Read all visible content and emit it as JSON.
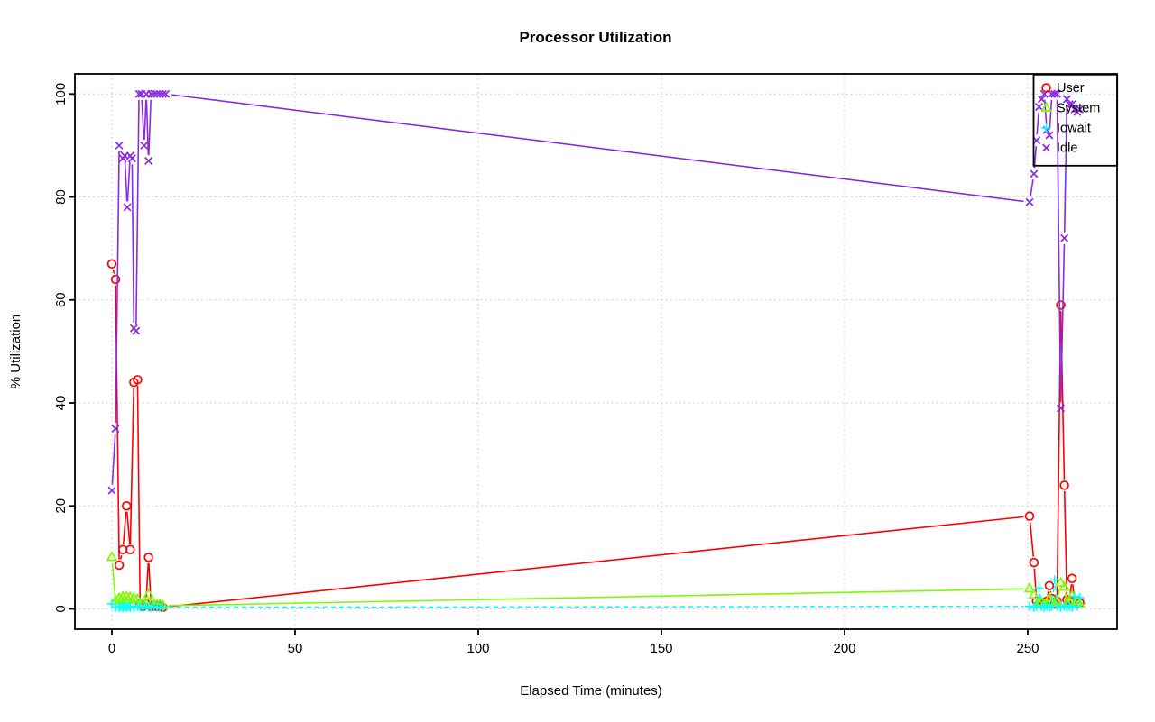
{
  "chart_data": {
    "type": "line",
    "title": "Processor Utilization",
    "xlabel": "Elapsed Time (minutes)",
    "ylabel": "% Utilization",
    "x_ticks": [
      0,
      50,
      100,
      150,
      200,
      250
    ],
    "y_ticks": [
      0,
      20,
      40,
      60,
      80,
      100
    ],
    "xlim": [
      -10.6,
      275.2
    ],
    "ylim": [
      -4,
      104
    ],
    "grid": {
      "show": true,
      "style": "dotted",
      "color": "#c6c6c6"
    },
    "legend": {
      "position": "top-right",
      "border": "#000000",
      "fill": "transparent"
    },
    "plot_style": "points-and-lines",
    "series": [
      {
        "name": "User",
        "color": "#FF0000",
        "marker": "circle",
        "line": "solid",
        "points": [
          [
            0,
            67
          ],
          [
            1,
            64
          ],
          [
            2,
            8.5
          ],
          [
            3,
            11.5
          ],
          [
            4,
            20
          ],
          [
            5,
            11.5
          ],
          [
            6,
            44
          ],
          [
            7,
            44.5
          ],
          [
            7.7,
            1
          ],
          [
            8.5,
            0.5
          ],
          [
            9.3,
            1
          ],
          [
            10,
            10
          ],
          [
            10.7,
            0.5
          ],
          [
            11.5,
            0.5
          ],
          [
            12.3,
            0.5
          ],
          [
            13.1,
            0.5
          ],
          [
            13.9,
            0.3
          ],
          [
            250.5,
            18
          ],
          [
            251.7,
            9
          ],
          [
            252.4,
            1.5
          ],
          [
            253.1,
            1
          ],
          [
            253.8,
            1.2
          ],
          [
            254.5,
            1
          ],
          [
            255.2,
            1.5
          ],
          [
            255.9,
            4.5
          ],
          [
            256.6,
            2
          ],
          [
            257.3,
            1
          ],
          [
            258,
            1.5
          ],
          [
            259,
            59
          ],
          [
            260,
            24
          ],
          [
            260.7,
            1.8
          ],
          [
            261.4,
            1.6
          ],
          [
            262.1,
            5.9
          ],
          [
            262.8,
            1.5
          ],
          [
            263.5,
            1
          ],
          [
            264.2,
            1.2
          ]
        ]
      },
      {
        "name": "System",
        "color": "#7CFC00",
        "marker": "triangle",
        "line": "solid",
        "points": [
          [
            0,
            10
          ],
          [
            1,
            1.5
          ],
          [
            2,
            2
          ],
          [
            2.5,
            1.7
          ],
          [
            3,
            2.3
          ],
          [
            3.5,
            1.7
          ],
          [
            4,
            2.3
          ],
          [
            4.5,
            1.7
          ],
          [
            5,
            2.2
          ],
          [
            6,
            2
          ],
          [
            7,
            1.8
          ],
          [
            7.7,
            1
          ],
          [
            8.5,
            1
          ],
          [
            9.3,
            1
          ],
          [
            10,
            2.8
          ],
          [
            10.7,
            0.8
          ],
          [
            11.5,
            0.8
          ],
          [
            12.3,
            0.8
          ],
          [
            13.1,
            0.8
          ],
          [
            13.9,
            0.6
          ],
          [
            250.5,
            3.9
          ],
          [
            251.7,
            2.7
          ],
          [
            252.4,
            0.8
          ],
          [
            253.1,
            1
          ],
          [
            253.8,
            1.2
          ],
          [
            254.5,
            0.8
          ],
          [
            255.2,
            1
          ],
          [
            255.9,
            2
          ],
          [
            256.6,
            1.2
          ],
          [
            257.3,
            1
          ],
          [
            258,
            1.5
          ],
          [
            259,
            5
          ],
          [
            260,
            4.2
          ],
          [
            260.7,
            1
          ],
          [
            261.4,
            1.2
          ],
          [
            262.1,
            2.5
          ],
          [
            262.8,
            1
          ],
          [
            263.5,
            1.3
          ],
          [
            264.2,
            0.9
          ]
        ]
      },
      {
        "name": "Iowait",
        "color": "#00FFFF",
        "marker": "plus",
        "line": "dashed",
        "points": [
          [
            0,
            1
          ],
          [
            1,
            0.3
          ],
          [
            2,
            0.3
          ],
          [
            2.5,
            0.5
          ],
          [
            3,
            0.3
          ],
          [
            3.5,
            0.5
          ],
          [
            4,
            0.3
          ],
          [
            4.5,
            0.5
          ],
          [
            5,
            0.3
          ],
          [
            6,
            0.3
          ],
          [
            7,
            0.5
          ],
          [
            7.7,
            0.3
          ],
          [
            8.5,
            0.3
          ],
          [
            9.3,
            0.5
          ],
          [
            10,
            0.3
          ],
          [
            10.7,
            0.3
          ],
          [
            11.5,
            0.5
          ],
          [
            12.3,
            0.3
          ],
          [
            13.1,
            0.3
          ],
          [
            13.9,
            0.3
          ],
          [
            250.5,
            0.5
          ],
          [
            251.7,
            0.3
          ],
          [
            252.4,
            0.5
          ],
          [
            253.1,
            4
          ],
          [
            253.8,
            0.5
          ],
          [
            254.5,
            0.3
          ],
          [
            255.2,
            0.5
          ],
          [
            255.9,
            0.3
          ],
          [
            256.6,
            0.5
          ],
          [
            257.3,
            5.6
          ],
          [
            258,
            0.5
          ],
          [
            259,
            0.3
          ],
          [
            260,
            0.5
          ],
          [
            260.7,
            0.3
          ],
          [
            261.4,
            0.5
          ],
          [
            262.1,
            0.3
          ],
          [
            262.8,
            2.4
          ],
          [
            263.5,
            0.5
          ],
          [
            264.2,
            2.2
          ]
        ]
      },
      {
        "name": "Idle",
        "color": "#8A2BE2",
        "marker": "x",
        "line": "solid",
        "points": [
          [
            0,
            23
          ],
          [
            1,
            35
          ],
          [
            2,
            90
          ],
          [
            3,
            87.5
          ],
          [
            3.5,
            88
          ],
          [
            4.2,
            78
          ],
          [
            5,
            88
          ],
          [
            5.5,
            87.5
          ],
          [
            6,
            54.5
          ],
          [
            6.6,
            54
          ],
          [
            7.4,
            100
          ],
          [
            8.1,
            100
          ],
          [
            8.8,
            90
          ],
          [
            9.4,
            100
          ],
          [
            10,
            87
          ],
          [
            10.7,
            100
          ],
          [
            11.5,
            100
          ],
          [
            12.3,
            100
          ],
          [
            13.1,
            100
          ],
          [
            13.9,
            100
          ],
          [
            14.7,
            100
          ],
          [
            250.5,
            79
          ],
          [
            251.7,
            84.5
          ],
          [
            252.4,
            91
          ],
          [
            253.1,
            97.5
          ],
          [
            253.8,
            99
          ],
          [
            254.5,
            100
          ],
          [
            255.2,
            93
          ],
          [
            255.9,
            92
          ],
          [
            256.6,
            100
          ],
          [
            257.3,
            100
          ],
          [
            258,
            100
          ],
          [
            259,
            39
          ],
          [
            260,
            72
          ],
          [
            260.7,
            99
          ],
          [
            261.4,
            98
          ],
          [
            262.1,
            98
          ],
          [
            262.8,
            97
          ],
          [
            263.5,
            96.5
          ],
          [
            264.2,
            97
          ]
        ]
      }
    ]
  }
}
